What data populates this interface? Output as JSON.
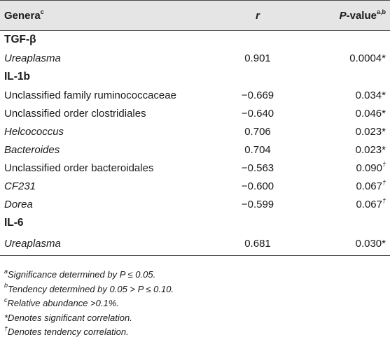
{
  "header": {
    "genera": "Genera",
    "genera_sup": "c",
    "r": "r",
    "pvalue": "P",
    "pvalue_suffix": "-value",
    "pvalue_sup": "a,b"
  },
  "groups": [
    {
      "label": "TGF-β",
      "rows": [
        {
          "genus": "Ureaplasma",
          "italic": true,
          "r": "0.901",
          "p": "0.0004",
          "mark": "*"
        }
      ]
    },
    {
      "label": "IL-1b",
      "rows": [
        {
          "genus": "Unclassified family ruminococcaceae",
          "italic": false,
          "r": "−0.669",
          "p": "0.034",
          "mark": "*"
        },
        {
          "genus": "Unclassified order clostridiales",
          "italic": false,
          "r": "−0.640",
          "p": "0.046",
          "mark": "*"
        },
        {
          "genus": "Helcococcus",
          "italic": true,
          "r": "0.706",
          "p": "0.023",
          "mark": "*"
        },
        {
          "genus": "Bacteroides",
          "italic": true,
          "r": "0.704",
          "p": "0.023",
          "mark": "*"
        },
        {
          "genus": "Unclassified order bacteroidales",
          "italic": false,
          "r": "−0.563",
          "p": "0.090",
          "mark": "†"
        },
        {
          "genus": "CF231",
          "italic": true,
          "r": "−0.600",
          "p": "0.067",
          "mark": "†"
        },
        {
          "genus": "Dorea",
          "italic": true,
          "r": "−0.599",
          "p": "0.067",
          "mark": "†"
        }
      ]
    },
    {
      "label": "IL-6",
      "rows": [
        {
          "genus": "Ureaplasma",
          "italic": true,
          "r": "0.681",
          "p": "0.030",
          "mark": "*"
        }
      ]
    }
  ],
  "footnotes": [
    {
      "sup": "a",
      "text": "Significance determined by P ≤ 0.05."
    },
    {
      "sup": "b",
      "text": "Tendency determined by 0.05 > P ≤ 0.10."
    },
    {
      "sup": "c",
      "text": "Relative abundance >0.1%."
    },
    {
      "sup": "",
      "text": "*Denotes significant correlation."
    },
    {
      "sup": "†",
      "text": "Denotes tendency correlation."
    }
  ]
}
